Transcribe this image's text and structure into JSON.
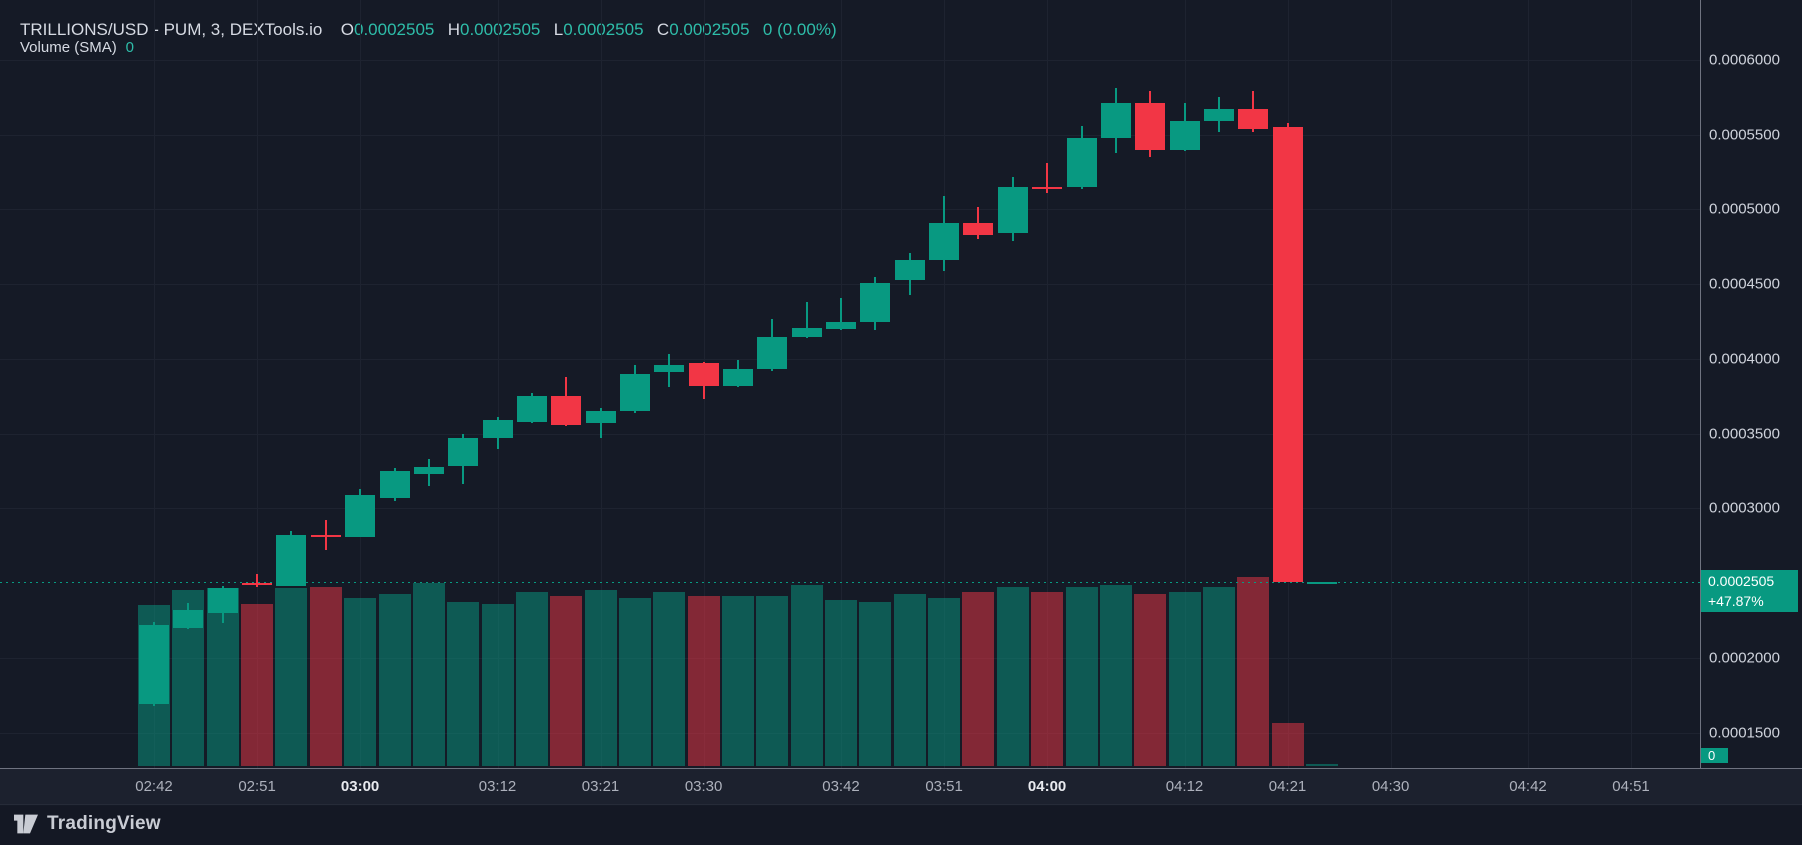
{
  "header": {
    "title": "TRILLIONS/USD - PUM, 3, DEXTools.io",
    "o_label": "O",
    "o_value": "0.0002505",
    "h_label": "H",
    "h_value": "0.0002505",
    "l_label": "L",
    "l_value": "0.0002505",
    "c_label": "C",
    "c_value": "0.0002505",
    "change_value": "0 (0.00%)",
    "volume_label": "Volume (SMA)",
    "volume_value": "0"
  },
  "price_axis": {
    "labels": [
      "0.0006000",
      "0.0005500",
      "0.0005000",
      "0.0004500",
      "0.0004000",
      "0.0003500",
      "0.0003000",
      "0.0002000",
      "0.0001500"
    ],
    "label_prices": [
      0.0006,
      0.00055,
      0.0005,
      0.00045,
      0.0004,
      0.00035,
      0.0003,
      0.0002,
      0.00015
    ],
    "price_badge": {
      "price": "0.0002505",
      "change": "+47.87%"
    },
    "volume_badge": "0"
  },
  "time_axis": {
    "ticks": [
      {
        "label": "02:42",
        "idx": 0,
        "bold": false
      },
      {
        "label": "02:51",
        "idx": 3,
        "bold": false
      },
      {
        "label": "03:00",
        "idx": 6,
        "bold": true
      },
      {
        "label": "03:12",
        "idx": 10,
        "bold": false
      },
      {
        "label": "03:21",
        "idx": 13,
        "bold": false
      },
      {
        "label": "03:30",
        "idx": 16,
        "bold": false
      },
      {
        "label": "03:42",
        "idx": 20,
        "bold": false
      },
      {
        "label": "03:51",
        "idx": 23,
        "bold": false
      },
      {
        "label": "04:00",
        "idx": 26,
        "bold": true
      },
      {
        "label": "04:12",
        "idx": 30,
        "bold": false
      },
      {
        "label": "04:21",
        "idx": 33,
        "bold": false
      },
      {
        "label": "04:30",
        "idx": 36,
        "bold": false
      },
      {
        "label": "04:42",
        "idx": 40,
        "bold": false
      },
      {
        "label": "04:51",
        "idx": 43,
        "bold": false
      }
    ]
  },
  "footer": {
    "brand": "TradingView"
  },
  "colors": {
    "up": "#089981",
    "down": "#f23645",
    "vol_up": "rgba(8,153,129,0.5)",
    "vol_down": "rgba(242,54,69,0.5)",
    "badge": "#089981"
  },
  "chart_data": {
    "type": "candlestick_with_volume",
    "symbol": "TRILLIONS/USD",
    "interval_minutes": 3,
    "price_line": 0.0002505,
    "change_percent": "+47.87%",
    "ylim": [
      0.00013,
      0.00063
    ],
    "volume_note": "volume shown as relative bar height 0-1; SMA value displayed is 0",
    "candles": [
      {
        "t": "02:42",
        "o": 0.000169,
        "h": 0.000224,
        "l": 0.000168,
        "c": 0.000222,
        "dir": "up",
        "v": 0.85
      },
      {
        "t": "02:45",
        "o": 0.00022,
        "h": 0.000237,
        "l": 0.000219,
        "c": 0.000232,
        "dir": "up",
        "v": 0.93
      },
      {
        "t": "02:48",
        "o": 0.00023,
        "h": 0.000248,
        "l": 0.000223,
        "c": 0.000247,
        "dir": "up",
        "v": 0.94
      },
      {
        "t": "02:51",
        "o": 0.00025,
        "h": 0.000256,
        "l": 0.000247,
        "c": 0.00025,
        "dir": "down",
        "v": 0.86
      },
      {
        "t": "02:54",
        "o": 0.000248,
        "h": 0.000285,
        "l": 0.000248,
        "c": 0.000282,
        "dir": "up",
        "v": 0.94
      },
      {
        "t": "02:57",
        "o": 0.000282,
        "h": 0.000292,
        "l": 0.000272,
        "c": 0.000282,
        "dir": "down",
        "v": 0.95
      },
      {
        "t": "03:00",
        "o": 0.000281,
        "h": 0.000313,
        "l": 0.000281,
        "c": 0.000309,
        "dir": "up",
        "v": 0.89
      },
      {
        "t": "03:03",
        "o": 0.000307,
        "h": 0.000327,
        "l": 0.000305,
        "c": 0.000325,
        "dir": "up",
        "v": 0.91
      },
      {
        "t": "03:06",
        "o": 0.000323,
        "h": 0.000333,
        "l": 0.000315,
        "c": 0.000328,
        "dir": "up",
        "v": 0.97
      },
      {
        "t": "03:09",
        "o": 0.000328,
        "h": 0.00035,
        "l": 0.000316,
        "c": 0.000347,
        "dir": "up",
        "v": 0.87
      },
      {
        "t": "03:12",
        "o": 0.000347,
        "h": 0.000361,
        "l": 0.00034,
        "c": 0.000359,
        "dir": "up",
        "v": 0.86
      },
      {
        "t": "03:15",
        "o": 0.000358,
        "h": 0.000377,
        "l": 0.000357,
        "c": 0.000375,
        "dir": "up",
        "v": 0.92
      },
      {
        "t": "03:18",
        "o": 0.000375,
        "h": 0.000388,
        "l": 0.000355,
        "c": 0.000356,
        "dir": "down",
        "v": 0.9
      },
      {
        "t": "03:21",
        "o": 0.000357,
        "h": 0.000367,
        "l": 0.000347,
        "c": 0.000365,
        "dir": "up",
        "v": 0.93
      },
      {
        "t": "03:24",
        "o": 0.000365,
        "h": 0.000396,
        "l": 0.000364,
        "c": 0.00039,
        "dir": "up",
        "v": 0.89
      },
      {
        "t": "03:27",
        "o": 0.000391,
        "h": 0.000403,
        "l": 0.000381,
        "c": 0.000396,
        "dir": "up",
        "v": 0.92
      },
      {
        "t": "03:30",
        "o": 0.000397,
        "h": 0.000398,
        "l": 0.000373,
        "c": 0.000382,
        "dir": "down",
        "v": 0.9
      },
      {
        "t": "03:33",
        "o": 0.000382,
        "h": 0.000399,
        "l": 0.000381,
        "c": 0.000393,
        "dir": "up",
        "v": 0.9
      },
      {
        "t": "03:36",
        "o": 0.000393,
        "h": 0.000427,
        "l": 0.000392,
        "c": 0.000415,
        "dir": "up",
        "v": 0.9
      },
      {
        "t": "03:39",
        "o": 0.000415,
        "h": 0.000438,
        "l": 0.000414,
        "c": 0.000421,
        "dir": "up",
        "v": 0.96
      },
      {
        "t": "03:42",
        "o": 0.00042,
        "h": 0.000441,
        "l": 0.000419,
        "c": 0.000425,
        "dir": "up",
        "v": 0.88
      },
      {
        "t": "03:45",
        "o": 0.000425,
        "h": 0.000455,
        "l": 0.000419,
        "c": 0.000451,
        "dir": "up",
        "v": 0.87
      },
      {
        "t": "03:48",
        "o": 0.000453,
        "h": 0.000471,
        "l": 0.000443,
        "c": 0.000466,
        "dir": "up",
        "v": 0.91
      },
      {
        "t": "03:51",
        "o": 0.000466,
        "h": 0.000509,
        "l": 0.000459,
        "c": 0.000491,
        "dir": "up",
        "v": 0.89
      },
      {
        "t": "03:54",
        "o": 0.000491,
        "h": 0.000502,
        "l": 0.00048,
        "c": 0.000483,
        "dir": "down",
        "v": 0.92
      },
      {
        "t": "03:57",
        "o": 0.000484,
        "h": 0.000522,
        "l": 0.000479,
        "c": 0.000515,
        "dir": "up",
        "v": 0.95
      },
      {
        "t": "04:00",
        "o": 0.000515,
        "h": 0.000531,
        "l": 0.000511,
        "c": 0.000515,
        "dir": "down",
        "v": 0.92
      },
      {
        "t": "04:03",
        "o": 0.000515,
        "h": 0.000556,
        "l": 0.000514,
        "c": 0.000548,
        "dir": "up",
        "v": 0.95
      },
      {
        "t": "04:06",
        "o": 0.000548,
        "h": 0.000581,
        "l": 0.000538,
        "c": 0.000571,
        "dir": "up",
        "v": 0.96
      },
      {
        "t": "04:09",
        "o": 0.000571,
        "h": 0.000579,
        "l": 0.000535,
        "c": 0.00054,
        "dir": "down",
        "v": 0.91
      },
      {
        "t": "04:12",
        "o": 0.00054,
        "h": 0.000571,
        "l": 0.000539,
        "c": 0.000559,
        "dir": "up",
        "v": 0.92
      },
      {
        "t": "04:15",
        "o": 0.000559,
        "h": 0.000575,
        "l": 0.000552,
        "c": 0.000567,
        "dir": "up",
        "v": 0.95
      },
      {
        "t": "04:18",
        "o": 0.000567,
        "h": 0.000579,
        "l": 0.000552,
        "c": 0.000554,
        "dir": "down",
        "v": 1.0
      },
      {
        "t": "04:21",
        "o": 0.000555,
        "h": 0.000558,
        "l": 0.0002505,
        "c": 0.0002505,
        "dir": "down",
        "v": 0.23
      },
      {
        "t": "04:24",
        "o": 0.0002505,
        "h": 0.0002505,
        "l": 0.0002505,
        "c": 0.0002505,
        "dir": "up",
        "v": 0.01
      }
    ]
  }
}
